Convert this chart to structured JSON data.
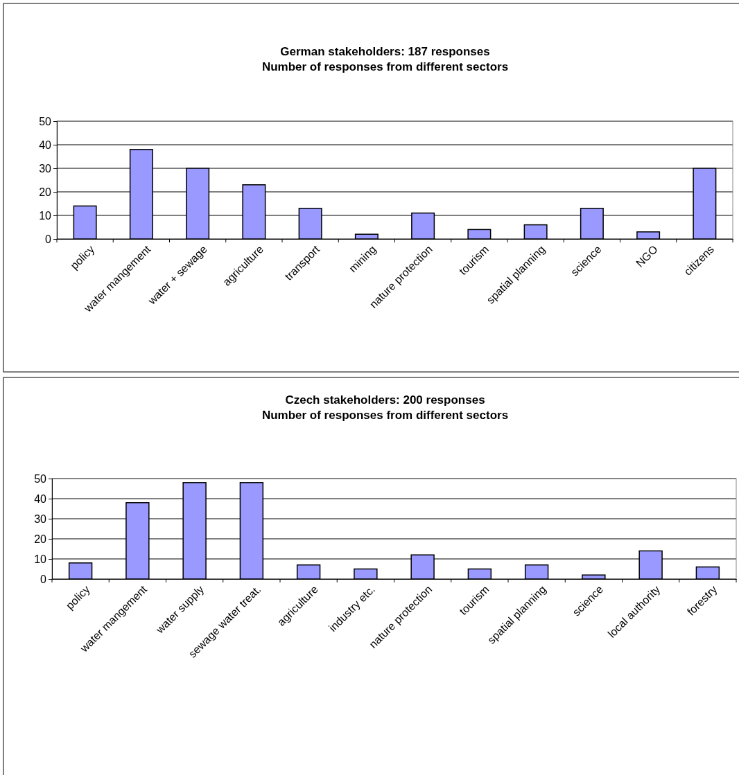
{
  "chart_data": [
    {
      "type": "bar",
      "title": "German stakeholders: 187 responses\nNumber of responses from different sectors",
      "categories": [
        "policy",
        "water mangement",
        "water + sewage",
        "agriculture",
        "transport",
        "mining",
        "nature protection",
        "tourism",
        "spatial planning",
        "science",
        "NGO",
        "citizens"
      ],
      "values": [
        14,
        38,
        30,
        23,
        13,
        2,
        11,
        4,
        6,
        13,
        3,
        30
      ],
      "color": "#9999ff",
      "ylim": [
        0,
        50
      ],
      "yticks": [
        0,
        10,
        20,
        30,
        40,
        50
      ],
      "grid": "y"
    },
    {
      "type": "bar",
      "title": "Czech stakeholders: 200 responses\nNumber of responses from different sectors",
      "categories": [
        "policy",
        "water mangement",
        "water supply",
        "sewage water treat.",
        "agriculture",
        "industry etc.",
        "nature protection",
        "tourism",
        "spatial planning",
        "science",
        "local authority",
        "forestry"
      ],
      "values": [
        8,
        38,
        48,
        48,
        7,
        5,
        12,
        5,
        7,
        2,
        14,
        6
      ],
      "color": "#9999ff",
      "ylim": [
        0,
        50
      ],
      "yticks": [
        0,
        10,
        20,
        30,
        40,
        50
      ],
      "grid": "y"
    }
  ]
}
